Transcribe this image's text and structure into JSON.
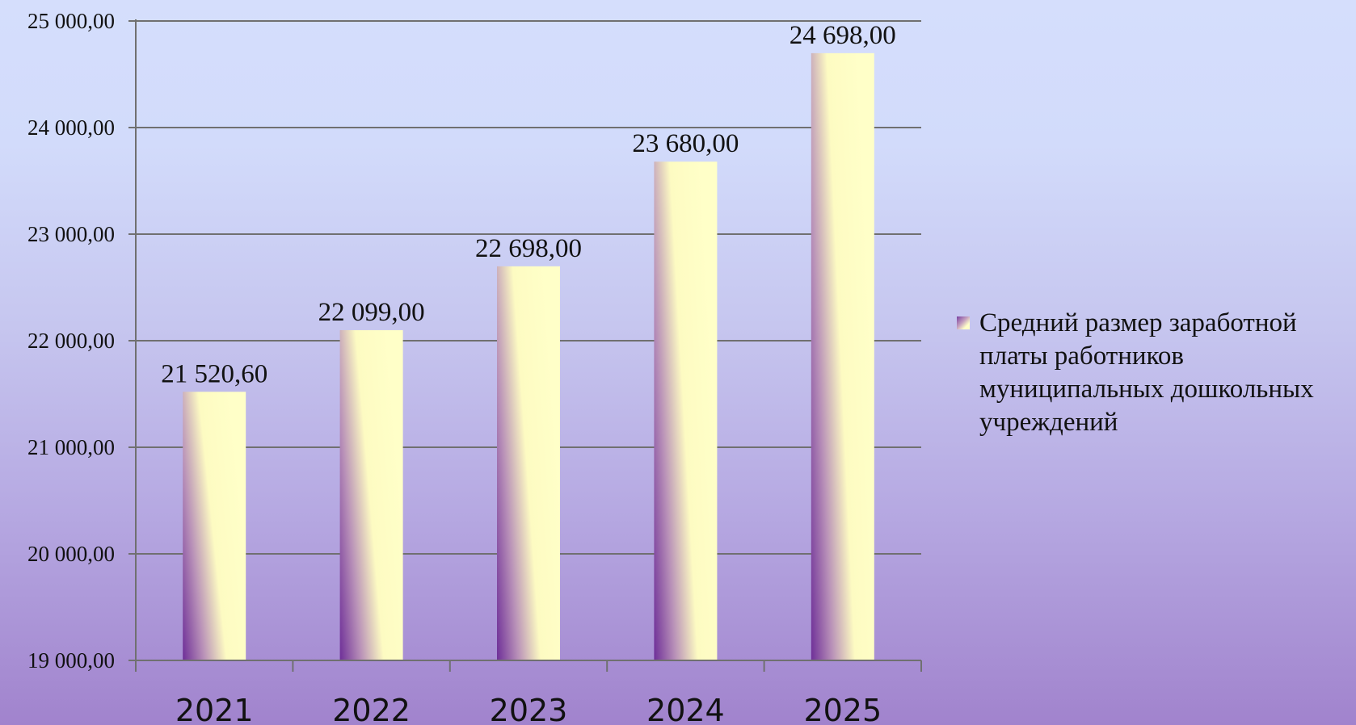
{
  "chart_data": {
    "type": "bar",
    "categories": [
      "2021",
      "2022",
      "2023",
      "2024",
      "2025"
    ],
    "series": [
      {
        "name": "Средний размер заработной платы работников муниципальных дошкольных учреждений",
        "values": [
          21520.6,
          22099.0,
          22698.0,
          23680.0,
          24698.0
        ],
        "value_labels": [
          "21 520,60",
          "22 099,00",
          "22 698,00",
          "23 680,00",
          "24 698,00"
        ]
      }
    ],
    "yticks": [
      19000,
      20000,
      21000,
      22000,
      23000,
      24000,
      25000
    ],
    "ytick_labels": [
      "19 000,00",
      "20 000,00",
      "21 000,00",
      "22 000,00",
      "23 000,00",
      "24 000,00",
      "25 000,00"
    ],
    "ylim": [
      19000,
      25000
    ],
    "grid": true,
    "legend_position": "right",
    "colors": {
      "bar_light": "#ffffc8",
      "bar_dark": "#7a3fa0",
      "grid": "#707070"
    }
  }
}
